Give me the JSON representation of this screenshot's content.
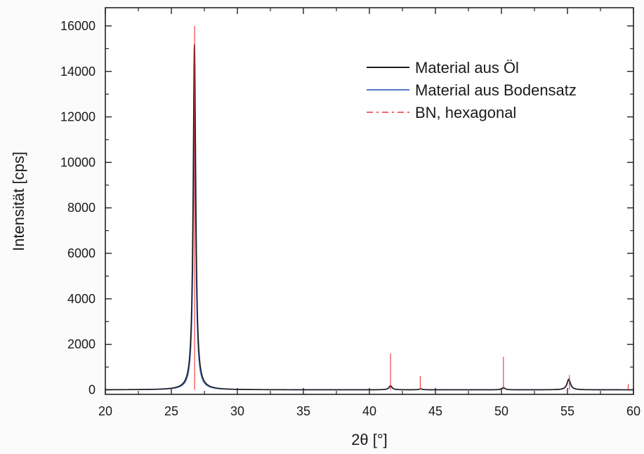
{
  "chart_data": {
    "type": "line",
    "xlabel": "2θ [°]",
    "ylabel": "Intensität [cps]",
    "xlim": [
      20,
      60
    ],
    "ylim": [
      -200,
      16800
    ],
    "x_ticks": [
      20,
      25,
      30,
      35,
      40,
      45,
      50,
      55,
      60
    ],
    "y_ticks": [
      0,
      2000,
      4000,
      6000,
      8000,
      10000,
      12000,
      14000,
      16000
    ],
    "grid": false,
    "legend_position": "top-right",
    "series": [
      {
        "name": "Material aus Öl",
        "color": "#1a1a1a",
        "style": "solid",
        "peaks": [
          {
            "x": 26.75,
            "y": 15200,
            "width": 0.12
          },
          {
            "x": 41.6,
            "y": 180,
            "width": 0.14
          },
          {
            "x": 43.9,
            "y": 40,
            "width": 0.14
          },
          {
            "x": 50.15,
            "y": 100,
            "width": 0.14
          },
          {
            "x": 55.1,
            "y": 470,
            "width": 0.16
          }
        ],
        "baseline": 0
      },
      {
        "name": "Material aus Bodensatz",
        "color": "#5577cc",
        "style": "solid",
        "peaks": [
          {
            "x": 26.75,
            "y": 12100,
            "width": 0.12
          },
          {
            "x": 41.6,
            "y": 160,
            "width": 0.14
          },
          {
            "x": 43.9,
            "y": 35,
            "width": 0.14
          },
          {
            "x": 50.15,
            "y": 90,
            "width": 0.14
          },
          {
            "x": 55.1,
            "y": 420,
            "width": 0.16
          }
        ],
        "baseline": 0
      },
      {
        "name": "BN, hexagonal",
        "color": "#ee3333",
        "style": "dashed",
        "type": "sticks",
        "x": [
          26.76,
          41.6,
          43.85,
          50.15,
          55.15,
          59.6
        ],
        "y": [
          16000,
          1600,
          600,
          1450,
          650,
          250
        ]
      }
    ]
  }
}
